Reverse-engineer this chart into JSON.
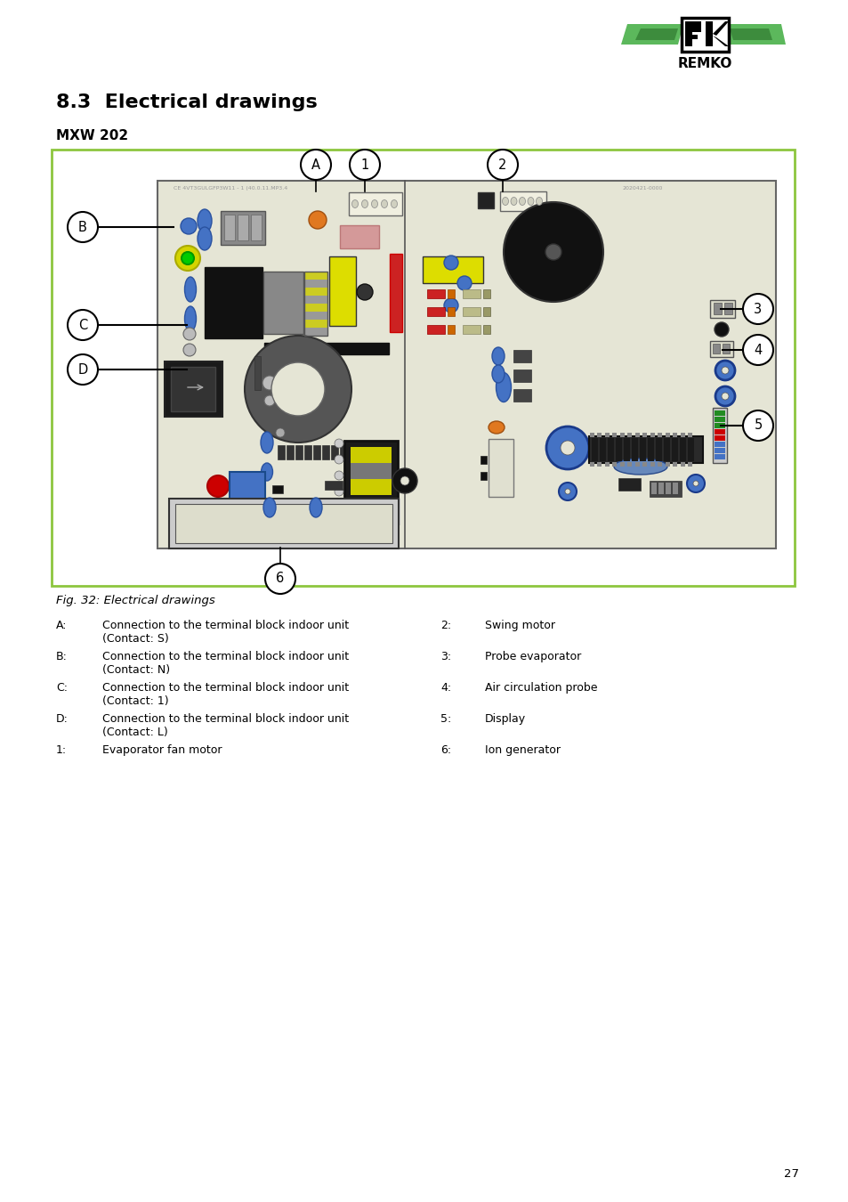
{
  "page_title": "8.3  Electrical drawings",
  "subtitle": "MXW 202",
  "figure_caption": "Fig. 32: Electrical drawings",
  "page_number": "27",
  "legend_left": [
    [
      "A:",
      "Connection to the terminal block indoor unit\n(Contact: S)"
    ],
    [
      "B:",
      "Connection to the terminal block indoor unit\n(Contact: N)"
    ],
    [
      "C:",
      "Connection to the terminal block indoor unit\n(Contact: 1)"
    ],
    [
      "D:",
      "Connection to the terminal block indoor unit\n(Contact: L)"
    ],
    [
      "1:",
      "Evaporator fan motor"
    ]
  ],
  "legend_right": [
    [
      "2:",
      "Swing motor"
    ],
    [
      "3:",
      "Probe evaporator"
    ],
    [
      "4:",
      "Air circulation probe"
    ],
    [
      "5:",
      "Display"
    ],
    [
      "6:",
      "Ion generator"
    ]
  ],
  "bg_color": "#ffffff",
  "border_color": "#8dc63f",
  "pcb_bg": "#e8e8d8"
}
